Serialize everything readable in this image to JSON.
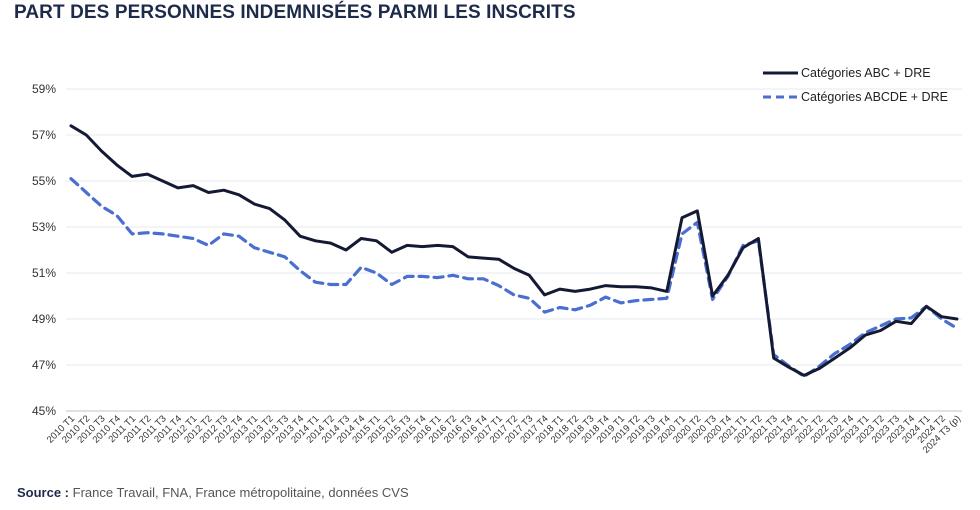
{
  "chart_data": {
    "type": "line",
    "title": "PART DES PERSONNES INDEMNISÉES PARMI LES INSCRITS",
    "xlabel": "",
    "ylabel": "",
    "ylim": [
      45,
      60
    ],
    "yticks": [
      "45%",
      "47%",
      "49%",
      "51%",
      "53%",
      "55%",
      "57%",
      "59%"
    ],
    "ytick_values": [
      45,
      47,
      49,
      51,
      53,
      55,
      57,
      59
    ],
    "grid": "horizontal",
    "legend_position": "top-right",
    "categories": [
      "2010 T1",
      "2010 T2",
      "2010 T3",
      "2010 T4",
      "2011 T1",
      "2011 T2",
      "2011 T3",
      "2011 T4",
      "2012 T1",
      "2012 T2",
      "2012 T3",
      "2012 T4",
      "2013 T1",
      "2013 T2",
      "2013 T3",
      "2013 T4",
      "2014 T1",
      "2014 T2",
      "2014 T3",
      "2014 T4",
      "2015 T1",
      "2015 T2",
      "2015 T3",
      "2015 T4",
      "2016 T1",
      "2016 T2",
      "2016 T3",
      "2016 T4",
      "2017 T1",
      "2017 T2",
      "2017 T3",
      "2017 T4",
      "2018 T1",
      "2018 T2",
      "2018 T3",
      "2018 T4",
      "2019 T1",
      "2019 T2",
      "2019 T3",
      "2019 T4",
      "2020 T1",
      "2020 T2",
      "2020 T3",
      "2020 T4",
      "2021 T1",
      "2021 T2",
      "2021 T3",
      "2021 T4",
      "2022 T1",
      "2022 T2",
      "2022 T3",
      "2022 T4",
      "2023 T1",
      "2023 T2",
      "2023 T3",
      "2023 T4",
      "2024 T1",
      "2024 T2",
      "2024 T3 (p)"
    ],
    "series": [
      {
        "name": "Catégories ABC + DRE",
        "color": "#141a33",
        "style": "solid",
        "values": [
          57.4,
          57.0,
          56.3,
          55.7,
          55.2,
          55.3,
          55.0,
          54.7,
          54.8,
          54.5,
          54.6,
          54.4,
          54.0,
          53.8,
          53.3,
          52.6,
          52.4,
          52.3,
          52.0,
          52.5,
          52.4,
          51.9,
          52.2,
          52.15,
          52.2,
          52.15,
          51.7,
          51.65,
          51.6,
          51.2,
          50.9,
          50.05,
          50.3,
          50.2,
          50.3,
          50.45,
          50.4,
          50.4,
          50.35,
          50.2,
          53.4,
          53.7,
          50.0,
          50.9,
          52.1,
          52.5,
          47.3,
          46.9,
          46.55,
          46.85,
          47.3,
          47.75,
          48.3,
          48.5,
          48.9,
          48.8,
          49.55,
          49.1,
          49.0
        ]
      },
      {
        "name": "Catégories ABCDE + DRE",
        "color": "#4b6fd1",
        "style": "dashed",
        "values": [
          55.1,
          54.5,
          53.9,
          53.5,
          52.7,
          52.75,
          52.7,
          52.6,
          52.5,
          52.2,
          52.7,
          52.6,
          52.1,
          51.9,
          51.7,
          51.1,
          50.6,
          50.5,
          50.5,
          51.25,
          51.0,
          50.5,
          50.85,
          50.85,
          50.8,
          50.9,
          50.75,
          50.75,
          50.45,
          50.05,
          49.9,
          49.3,
          49.5,
          49.4,
          49.6,
          49.95,
          49.7,
          49.8,
          49.85,
          49.9,
          52.7,
          53.2,
          49.85,
          50.85,
          52.2,
          52.4,
          47.45,
          46.95,
          46.5,
          46.95,
          47.5,
          47.9,
          48.4,
          48.7,
          49.0,
          49.05,
          49.55,
          49.0,
          48.6
        ]
      }
    ]
  },
  "source": {
    "label": "Source :",
    "text": " France Travail, FNA, France métropolitaine, données CVS"
  }
}
